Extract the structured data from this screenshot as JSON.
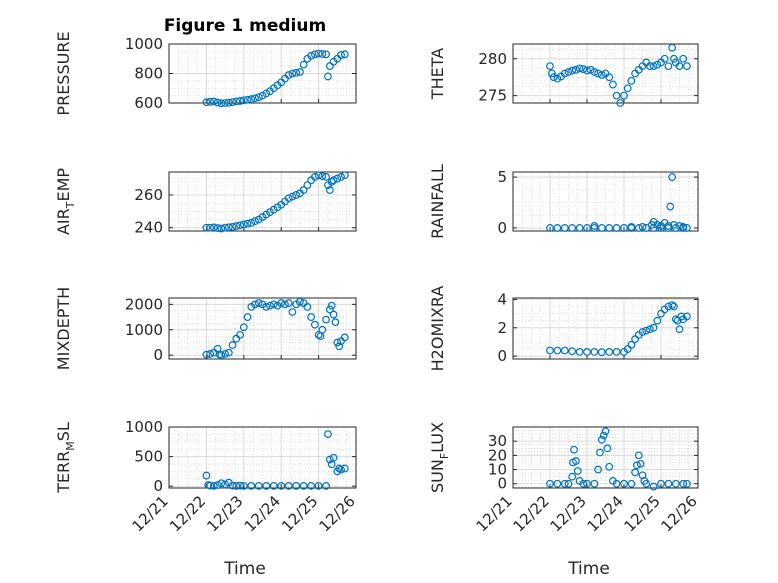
{
  "figure_title": "Figure 1 medium",
  "marker_color": "#0072bd",
  "xlabel": "Time",
  "x_tick_labels": [
    "12/21",
    "12/22",
    "12/23",
    "12/24",
    "12/25",
    "12/26"
  ],
  "chart_data": [
    {
      "type": "scatter",
      "name": "PRESSURE",
      "ylabel": "PRESSURE",
      "ylabel_sub": "",
      "ylim": [
        600,
        1000
      ],
      "yticks": [
        600,
        800,
        1000
      ],
      "xlim": [
        21,
        26
      ],
      "points": [
        [
          22.0,
          605
        ],
        [
          22.1,
          608
        ],
        [
          22.2,
          610
        ],
        [
          22.3,
          603
        ],
        [
          22.4,
          598
        ],
        [
          22.5,
          600
        ],
        [
          22.6,
          602
        ],
        [
          22.7,
          606
        ],
        [
          22.8,
          610
        ],
        [
          22.9,
          614
        ],
        [
          23.0,
          618
        ],
        [
          23.1,
          622
        ],
        [
          23.2,
          626
        ],
        [
          23.3,
          632
        ],
        [
          23.4,
          640
        ],
        [
          23.5,
          650
        ],
        [
          23.6,
          665
        ],
        [
          23.7,
          680
        ],
        [
          23.8,
          700
        ],
        [
          23.9,
          720
        ],
        [
          24.0,
          740
        ],
        [
          24.1,
          765
        ],
        [
          24.2,
          790
        ],
        [
          24.3,
          800
        ],
        [
          24.4,
          805
        ],
        [
          24.5,
          810
        ],
        [
          24.6,
          860
        ],
        [
          24.7,
          900
        ],
        [
          24.8,
          920
        ],
        [
          24.9,
          930
        ],
        [
          25.0,
          935
        ],
        [
          25.1,
          932
        ],
        [
          25.2,
          930
        ],
        [
          25.25,
          780
        ],
        [
          25.3,
          850
        ],
        [
          25.4,
          880
        ],
        [
          25.5,
          900
        ],
        [
          25.6,
          925
        ],
        [
          25.7,
          930
        ]
      ]
    },
    {
      "type": "scatter",
      "name": "THETA",
      "ylabel": "THETA",
      "ylabel_sub": "",
      "ylim": [
        274,
        282
      ],
      "yticks": [
        275,
        280
      ],
      "xlim": [
        21,
        26
      ],
      "points": [
        [
          22.0,
          279
        ],
        [
          22.05,
          278
        ],
        [
          22.1,
          277.5
        ],
        [
          22.2,
          277.3
        ],
        [
          22.3,
          277.6
        ],
        [
          22.4,
          278
        ],
        [
          22.5,
          278.2
        ],
        [
          22.6,
          278.4
        ],
        [
          22.7,
          278.5
        ],
        [
          22.8,
          278.7
        ],
        [
          22.9,
          278.6
        ],
        [
          23.0,
          278.4
        ],
        [
          23.1,
          278.5
        ],
        [
          23.2,
          278.2
        ],
        [
          23.3,
          278
        ],
        [
          23.4,
          277.8
        ],
        [
          23.5,
          278
        ],
        [
          23.6,
          277.5
        ],
        [
          23.7,
          276.5
        ],
        [
          23.8,
          275
        ],
        [
          23.9,
          274
        ],
        [
          24.0,
          275
        ],
        [
          24.1,
          276
        ],
        [
          24.2,
          277
        ],
        [
          24.3,
          278
        ],
        [
          24.4,
          278.5
        ],
        [
          24.5,
          279
        ],
        [
          24.6,
          279.5
        ],
        [
          24.7,
          279
        ],
        [
          24.8,
          279
        ],
        [
          24.9,
          279.2
        ],
        [
          25.0,
          279.5
        ],
        [
          25.1,
          280
        ],
        [
          25.2,
          279
        ],
        [
          25.3,
          281.5
        ],
        [
          25.35,
          280
        ],
        [
          25.4,
          279.5
        ],
        [
          25.5,
          279
        ],
        [
          25.6,
          280
        ],
        [
          25.7,
          279
        ]
      ]
    },
    {
      "type": "scatter",
      "name": "AIR_TEMP",
      "ylabel": "AIR",
      "ylabel_sub": "T",
      "ylabel_tail": "EMP",
      "ylim": [
        238,
        274
      ],
      "yticks": [
        240,
        260
      ],
      "xlim": [
        21,
        26
      ],
      "points": [
        [
          22.0,
          240
        ],
        [
          22.1,
          240
        ],
        [
          22.2,
          240.2
        ],
        [
          22.3,
          239.8
        ],
        [
          22.4,
          239.5
        ],
        [
          22.5,
          240
        ],
        [
          22.6,
          240.3
        ],
        [
          22.7,
          240.5
        ],
        [
          22.8,
          241
        ],
        [
          22.9,
          241.5
        ],
        [
          23.0,
          242
        ],
        [
          23.1,
          242.5
        ],
        [
          23.2,
          243
        ],
        [
          23.3,
          244
        ],
        [
          23.4,
          245
        ],
        [
          23.5,
          246.5
        ],
        [
          23.6,
          248
        ],
        [
          23.7,
          249.5
        ],
        [
          23.8,
          251
        ],
        [
          23.9,
          252.5
        ],
        [
          24.0,
          254
        ],
        [
          24.1,
          256
        ],
        [
          24.2,
          258
        ],
        [
          24.3,
          259
        ],
        [
          24.4,
          260
        ],
        [
          24.5,
          261
        ],
        [
          24.6,
          263
        ],
        [
          24.7,
          266
        ],
        [
          24.8,
          269
        ],
        [
          24.9,
          271
        ],
        [
          25.0,
          272
        ],
        [
          25.1,
          271.5
        ],
        [
          25.2,
          271
        ],
        [
          25.25,
          266
        ],
        [
          25.3,
          263
        ],
        [
          25.35,
          268
        ],
        [
          25.4,
          269
        ],
        [
          25.5,
          270
        ],
        [
          25.6,
          271
        ],
        [
          25.7,
          272
        ]
      ]
    },
    {
      "type": "scatter",
      "name": "RAINFALL",
      "ylabel": "RAINFALL",
      "ylabel_sub": "",
      "ylim": [
        -0.3,
        5.5
      ],
      "yticks": [
        0,
        5
      ],
      "xlim": [
        21,
        26
      ],
      "points": [
        [
          22.0,
          0
        ],
        [
          22.2,
          0
        ],
        [
          22.4,
          0
        ],
        [
          22.6,
          0
        ],
        [
          22.8,
          0
        ],
        [
          23.0,
          0
        ],
        [
          23.2,
          0
        ],
        [
          23.4,
          0
        ],
        [
          23.6,
          0
        ],
        [
          23.8,
          0
        ],
        [
          24.0,
          0
        ],
        [
          24.2,
          0
        ],
        [
          24.4,
          0
        ],
        [
          24.6,
          0
        ],
        [
          24.8,
          0
        ],
        [
          25.0,
          0
        ],
        [
          25.2,
          0
        ],
        [
          25.4,
          0
        ],
        [
          25.6,
          0
        ],
        [
          25.7,
          0
        ],
        [
          23.2,
          0.2
        ],
        [
          24.2,
          0.1
        ],
        [
          24.5,
          0.1
        ],
        [
          24.75,
          0.3
        ],
        [
          24.8,
          0.6
        ],
        [
          24.9,
          0.3
        ],
        [
          25.0,
          0.2
        ],
        [
          25.1,
          0.5
        ],
        [
          25.2,
          0.2
        ],
        [
          25.25,
          2.1
        ],
        [
          25.3,
          5.0
        ],
        [
          25.35,
          0.3
        ],
        [
          25.5,
          0.2
        ],
        [
          25.6,
          0.1
        ]
      ]
    },
    {
      "type": "scatter",
      "name": "MIXDEPTH",
      "ylabel": "MIXDEPTH",
      "ylabel_sub": "",
      "ylim": [
        -150,
        2250
      ],
      "yticks": [
        0,
        1000,
        2000
      ],
      "xlim": [
        21,
        26
      ],
      "points": [
        [
          22.0,
          20
        ],
        [
          22.1,
          50
        ],
        [
          22.2,
          100
        ],
        [
          22.3,
          250
        ],
        [
          22.35,
          30
        ],
        [
          22.4,
          0
        ],
        [
          22.5,
          50
        ],
        [
          22.6,
          100
        ],
        [
          22.7,
          400
        ],
        [
          22.8,
          650
        ],
        [
          22.9,
          800
        ],
        [
          23.0,
          1100
        ],
        [
          23.1,
          1500
        ],
        [
          23.2,
          1900
        ],
        [
          23.3,
          2000
        ],
        [
          23.4,
          2050
        ],
        [
          23.5,
          2000
        ],
        [
          23.6,
          1900
        ],
        [
          23.7,
          1950
        ],
        [
          23.8,
          2000
        ],
        [
          23.9,
          1950
        ],
        [
          24.0,
          2050
        ],
        [
          24.1,
          2000
        ],
        [
          24.2,
          2050
        ],
        [
          24.3,
          1700
        ],
        [
          24.4,
          2000
        ],
        [
          24.5,
          2100
        ],
        [
          24.6,
          2050
        ],
        [
          24.7,
          1900
        ],
        [
          24.8,
          1500
        ],
        [
          24.9,
          1200
        ],
        [
          25.0,
          800
        ],
        [
          25.05,
          750
        ],
        [
          25.1,
          1000
        ],
        [
          25.2,
          1400
        ],
        [
          25.3,
          1800
        ],
        [
          25.35,
          1950
        ],
        [
          25.4,
          1600
        ],
        [
          25.45,
          1300
        ],
        [
          25.5,
          500
        ],
        [
          25.55,
          350
        ],
        [
          25.6,
          550
        ],
        [
          25.7,
          700
        ]
      ]
    },
    {
      "type": "scatter",
      "name": "H2OMIXRA",
      "ylabel": "H2OMIXRA",
      "ylabel_sub": "",
      "ylim": [
        -0.2,
        4.1
      ],
      "yticks": [
        0,
        2,
        4
      ],
      "xlim": [
        21,
        26
      ],
      "points": [
        [
          22.0,
          0.4
        ],
        [
          22.2,
          0.4
        ],
        [
          22.4,
          0.4
        ],
        [
          22.6,
          0.35
        ],
        [
          22.8,
          0.3
        ],
        [
          23.0,
          0.3
        ],
        [
          23.2,
          0.3
        ],
        [
          23.4,
          0.28
        ],
        [
          23.6,
          0.3
        ],
        [
          23.8,
          0.3
        ],
        [
          24.0,
          0.3
        ],
        [
          24.1,
          0.5
        ],
        [
          24.2,
          0.8
        ],
        [
          24.3,
          1.2
        ],
        [
          24.4,
          1.5
        ],
        [
          24.5,
          1.7
        ],
        [
          24.6,
          1.8
        ],
        [
          24.7,
          1.9
        ],
        [
          24.8,
          2.0
        ],
        [
          24.9,
          2.5
        ],
        [
          25.0,
          3.0
        ],
        [
          25.1,
          3.3
        ],
        [
          25.2,
          3.5
        ],
        [
          25.3,
          3.6
        ],
        [
          25.35,
          3.5
        ],
        [
          25.4,
          2.6
        ],
        [
          25.45,
          2.5
        ],
        [
          25.5,
          1.9
        ],
        [
          25.55,
          2.8
        ],
        [
          25.6,
          2.6
        ],
        [
          25.7,
          2.8
        ]
      ]
    },
    {
      "type": "scatter",
      "name": "TERR_MSL",
      "ylabel": "TERR",
      "ylabel_sub": "M",
      "ylabel_tail": "SL",
      "ylim": [
        -30,
        1000
      ],
      "yticks": [
        0,
        500,
        1000
      ],
      "xlim": [
        21,
        26
      ],
      "points": [
        [
          22.0,
          180
        ],
        [
          22.05,
          20
        ],
        [
          22.1,
          10
        ],
        [
          22.2,
          5
        ],
        [
          22.3,
          20
        ],
        [
          22.4,
          50
        ],
        [
          22.5,
          30
        ],
        [
          22.6,
          60
        ],
        [
          22.7,
          10
        ],
        [
          22.8,
          5
        ],
        [
          22.9,
          10
        ],
        [
          23.0,
          5
        ],
        [
          23.2,
          5
        ],
        [
          23.4,
          5
        ],
        [
          23.6,
          5
        ],
        [
          23.8,
          5
        ],
        [
          24.0,
          5
        ],
        [
          24.2,
          5
        ],
        [
          24.4,
          5
        ],
        [
          24.6,
          5
        ],
        [
          24.8,
          5
        ],
        [
          25.0,
          5
        ],
        [
          25.2,
          5
        ],
        [
          25.25,
          880
        ],
        [
          25.3,
          450
        ],
        [
          25.35,
          370
        ],
        [
          25.4,
          480
        ],
        [
          25.5,
          250
        ],
        [
          25.55,
          300
        ],
        [
          25.6,
          280
        ],
        [
          25.7,
          300
        ]
      ]
    },
    {
      "type": "scatter",
      "name": "SUN_FLUX",
      "ylabel": "SUN",
      "ylabel_sub": "F",
      "ylabel_tail": "LUX",
      "ylim": [
        -3,
        40
      ],
      "yticks": [
        0,
        10,
        20,
        30
      ],
      "xlim": [
        21,
        26
      ],
      "points": [
        [
          22.0,
          0
        ],
        [
          22.2,
          0
        ],
        [
          22.4,
          0
        ],
        [
          22.5,
          0
        ],
        [
          22.6,
          5
        ],
        [
          22.62,
          15
        ],
        [
          22.65,
          24
        ],
        [
          22.7,
          16
        ],
        [
          22.75,
          9
        ],
        [
          22.8,
          2
        ],
        [
          22.9,
          0
        ],
        [
          23.0,
          0
        ],
        [
          23.2,
          0
        ],
        [
          23.3,
          10
        ],
        [
          23.35,
          22
        ],
        [
          23.4,
          31
        ],
        [
          23.45,
          34
        ],
        [
          23.5,
          37
        ],
        [
          23.55,
          25
        ],
        [
          23.6,
          12
        ],
        [
          23.7,
          2
        ],
        [
          23.8,
          0
        ],
        [
          24.0,
          0
        ],
        [
          24.2,
          0
        ],
        [
          24.3,
          8
        ],
        [
          24.35,
          13
        ],
        [
          24.4,
          20
        ],
        [
          24.45,
          14
        ],
        [
          24.5,
          6
        ],
        [
          24.55,
          2
        ],
        [
          24.6,
          0
        ],
        [
          24.8,
          -2
        ],
        [
          25.0,
          0
        ],
        [
          25.2,
          0
        ],
        [
          25.4,
          0
        ],
        [
          25.6,
          0
        ],
        [
          25.7,
          0
        ]
      ]
    }
  ]
}
